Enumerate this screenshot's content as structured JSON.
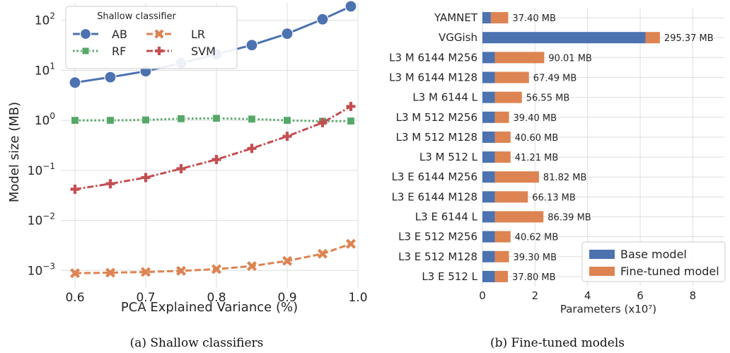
{
  "chart_data": [
    {
      "type": "line",
      "caption": "(a) Shallow classifiers",
      "xlabel": "PCA Explained Variance (%)",
      "ylabel": "Model size (MB)",
      "yscale": "log",
      "xlim": [
        0.58,
        1.0
      ],
      "ylim_exp": [
        -3.35,
        2.35
      ],
      "xticks": [
        "0.6",
        "0.7",
        "0.8",
        "0.9",
        "1.0"
      ],
      "xtick_values": [
        0.6,
        0.7,
        0.8,
        0.9,
        1.0
      ],
      "ytick_exps": [
        -3,
        -2,
        -1,
        0,
        1,
        2
      ],
      "x": [
        0.6,
        0.65,
        0.7,
        0.75,
        0.8,
        0.85,
        0.9,
        0.95,
        0.99
      ],
      "grid": true,
      "legend": {
        "title": "Shallow classifier",
        "placement": "top-left"
      },
      "series": [
        {
          "name": "AB",
          "color": "#4c72b0",
          "marker": "circle",
          "dash": "solid",
          "values": [
            5.7,
            7.3,
            9.6,
            14,
            21,
            32,
            54,
            105,
            190
          ]
        },
        {
          "name": "LR",
          "color": "#dd8452",
          "marker": "x",
          "dash": "dashed",
          "values": [
            0.00088,
            0.0009,
            0.00093,
            0.00098,
            0.00106,
            0.00122,
            0.00155,
            0.00215,
            0.0034
          ]
        },
        {
          "name": "RF",
          "color": "#55a868",
          "marker": "square",
          "dash": "dotted",
          "values": [
            1.0,
            1.0,
            1.02,
            1.08,
            1.1,
            1.06,
            1.0,
            0.96,
            0.97
          ]
        },
        {
          "name": "SVM",
          "color": "#c44e52",
          "marker": "plus",
          "dash": "dashdot",
          "values": [
            0.042,
            0.054,
            0.072,
            0.108,
            0.165,
            0.275,
            0.48,
            0.9,
            1.9
          ]
        }
      ]
    },
    {
      "type": "bar",
      "orientation": "horizontal",
      "stacked": true,
      "caption": "(b) Fine-tuned models",
      "xlabel": "Parameters (x10⁷)",
      "xlim": [
        0,
        9.2
      ],
      "xticks": [
        0,
        2,
        4,
        6,
        8
      ],
      "grid": true,
      "legend": {
        "placement": "bottom-right"
      },
      "categories": [
        "YAMNET",
        "VGGish",
        "L3 M 6144 M256",
        "L3 M 6144 M128",
        "L3 M 6144 L",
        "L3 M 512 M256",
        "L3 M 512 M128",
        "L3 M 512 L",
        "L3 E 6144 M256",
        "L3 E 6144 M128",
        "L3 E 6144 L",
        "L3 E 512 M256",
        "L3 E 512 M128",
        "L3 E 512 L"
      ],
      "series": [
        {
          "name": "Base model",
          "color": "#4c72b0",
          "values": [
            0.32,
            6.2,
            0.47,
            0.47,
            0.47,
            0.47,
            0.47,
            0.47,
            0.47,
            0.47,
            0.47,
            0.47,
            0.47,
            0.47
          ]
        },
        {
          "name": "Fine-tuned model",
          "color": "#dd8452",
          "values": [
            0.66,
            0.55,
            1.88,
            1.3,
            1.03,
            0.54,
            0.6,
            0.6,
            1.68,
            1.26,
            1.85,
            0.6,
            0.54,
            0.5
          ]
        }
      ],
      "data_labels": [
        "37.40 MB",
        "295.37 MB",
        "90.01 MB",
        "67.49 MB",
        "56.55 MB",
        "39.40 MB",
        "40.60 MB",
        "41.21 MB",
        "81.82 MB",
        "66.13 MB",
        "86.39 MB",
        "40.62 MB",
        "39.30 MB",
        "37.80 MB"
      ]
    }
  ]
}
